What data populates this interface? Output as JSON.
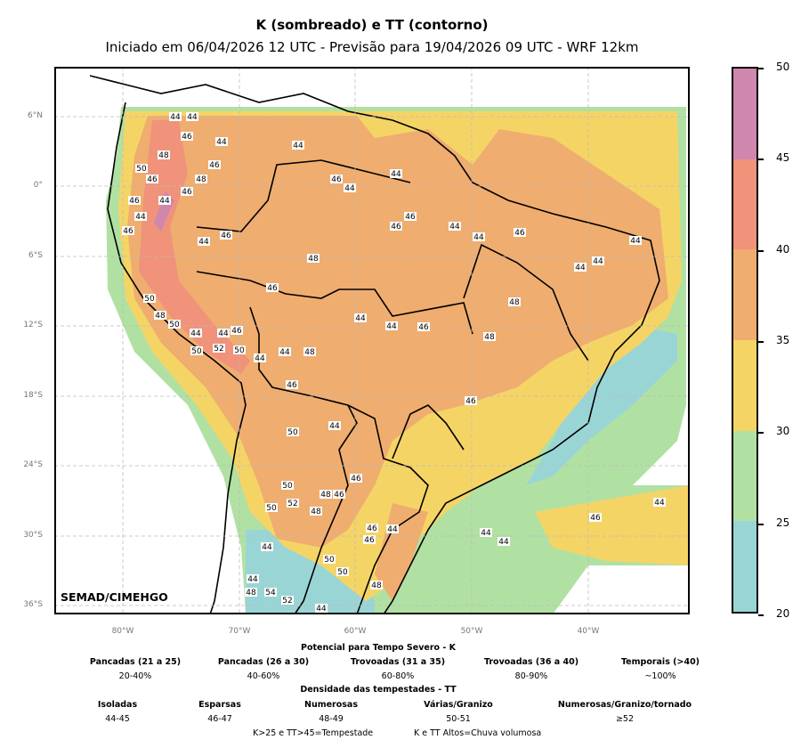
{
  "title": "K (sombreado) e TT (contorno)",
  "subtitle": "Iniciado em 06/04/2026 12 UTC - Previsão para 19/04/2026 09 UTC - WRF 12km",
  "watermark": "SEMAD/CIMEHGO",
  "axes": {
    "lat_ticks": [
      "6°N",
      "0°",
      "6°S",
      "12°S",
      "18°S",
      "24°S",
      "30°S",
      "36°S"
    ],
    "lon_ticks": [
      "80°W",
      "70°W",
      "60°W",
      "50°W",
      "40°W"
    ]
  },
  "colorbar": {
    "ticks": [
      "50",
      "45",
      "40",
      "35",
      "30",
      "25",
      "20"
    ],
    "bins": [
      {
        "range": [
          45,
          50
        ],
        "color": "#cf87ad"
      },
      {
        "range": [
          40,
          45
        ],
        "color": "#f0937a"
      },
      {
        "range": [
          35,
          40
        ],
        "color": "#efad70"
      },
      {
        "range": [
          30,
          35
        ],
        "color": "#f5d466"
      },
      {
        "range": [
          25,
          30
        ],
        "color": "#b1e1a2"
      },
      {
        "range": [
          20,
          25
        ],
        "color": "#9ad5d6"
      }
    ]
  },
  "contour_labels": [
    "44",
    "44",
    "48",
    "46",
    "44",
    "48",
    "46",
    "44",
    "46",
    "50",
    "46",
    "46",
    "44",
    "46",
    "44",
    "46",
    "48",
    "46",
    "48",
    "44",
    "46",
    "44",
    "44",
    "46",
    "46",
    "44",
    "44",
    "46",
    "44",
    "44",
    "44",
    "50",
    "48",
    "50",
    "44",
    "44",
    "46",
    "50",
    "52",
    "50",
    "44",
    "44",
    "46",
    "44",
    "44",
    "46",
    "48",
    "48",
    "46",
    "50",
    "44",
    "46",
    "50",
    "50",
    "52",
    "48",
    "48",
    "46",
    "46",
    "44",
    "44",
    "44",
    "46",
    "44",
    "44",
    "50",
    "44",
    "50",
    "48",
    "48",
    "54",
    "52",
    "44",
    "46"
  ],
  "legend": {
    "k_title": "Potencial para Tempo Severo - K",
    "k_items": [
      {
        "label": "Pancadas (21 a 25)",
        "value": "20-40%"
      },
      {
        "label": "Pancadas (26 a 30)",
        "value": "40-60%"
      },
      {
        "label": "Trovoadas (31 a 35)",
        "value": "60-80%"
      },
      {
        "label": "Trovoadas (36 a 40)",
        "value": "80-90%"
      },
      {
        "label": "Temporais (>40)",
        "value": "~100%"
      }
    ],
    "tt_title": "Densidade das tempestades - TT",
    "tt_items": [
      {
        "label": "Isoladas",
        "value": "44-45"
      },
      {
        "label": "Esparsas",
        "value": "46-47"
      },
      {
        "label": "Numerosas",
        "value": "48-49"
      },
      {
        "label": "Várias/Granizo",
        "value": "50-51"
      },
      {
        "label": "Numerosas/Granizo/tornado",
        "value": "≥52"
      }
    ],
    "note1": "K>25 e TT>45=Tempestade",
    "note2": "K e TT Altos=Chuva volumosa"
  }
}
